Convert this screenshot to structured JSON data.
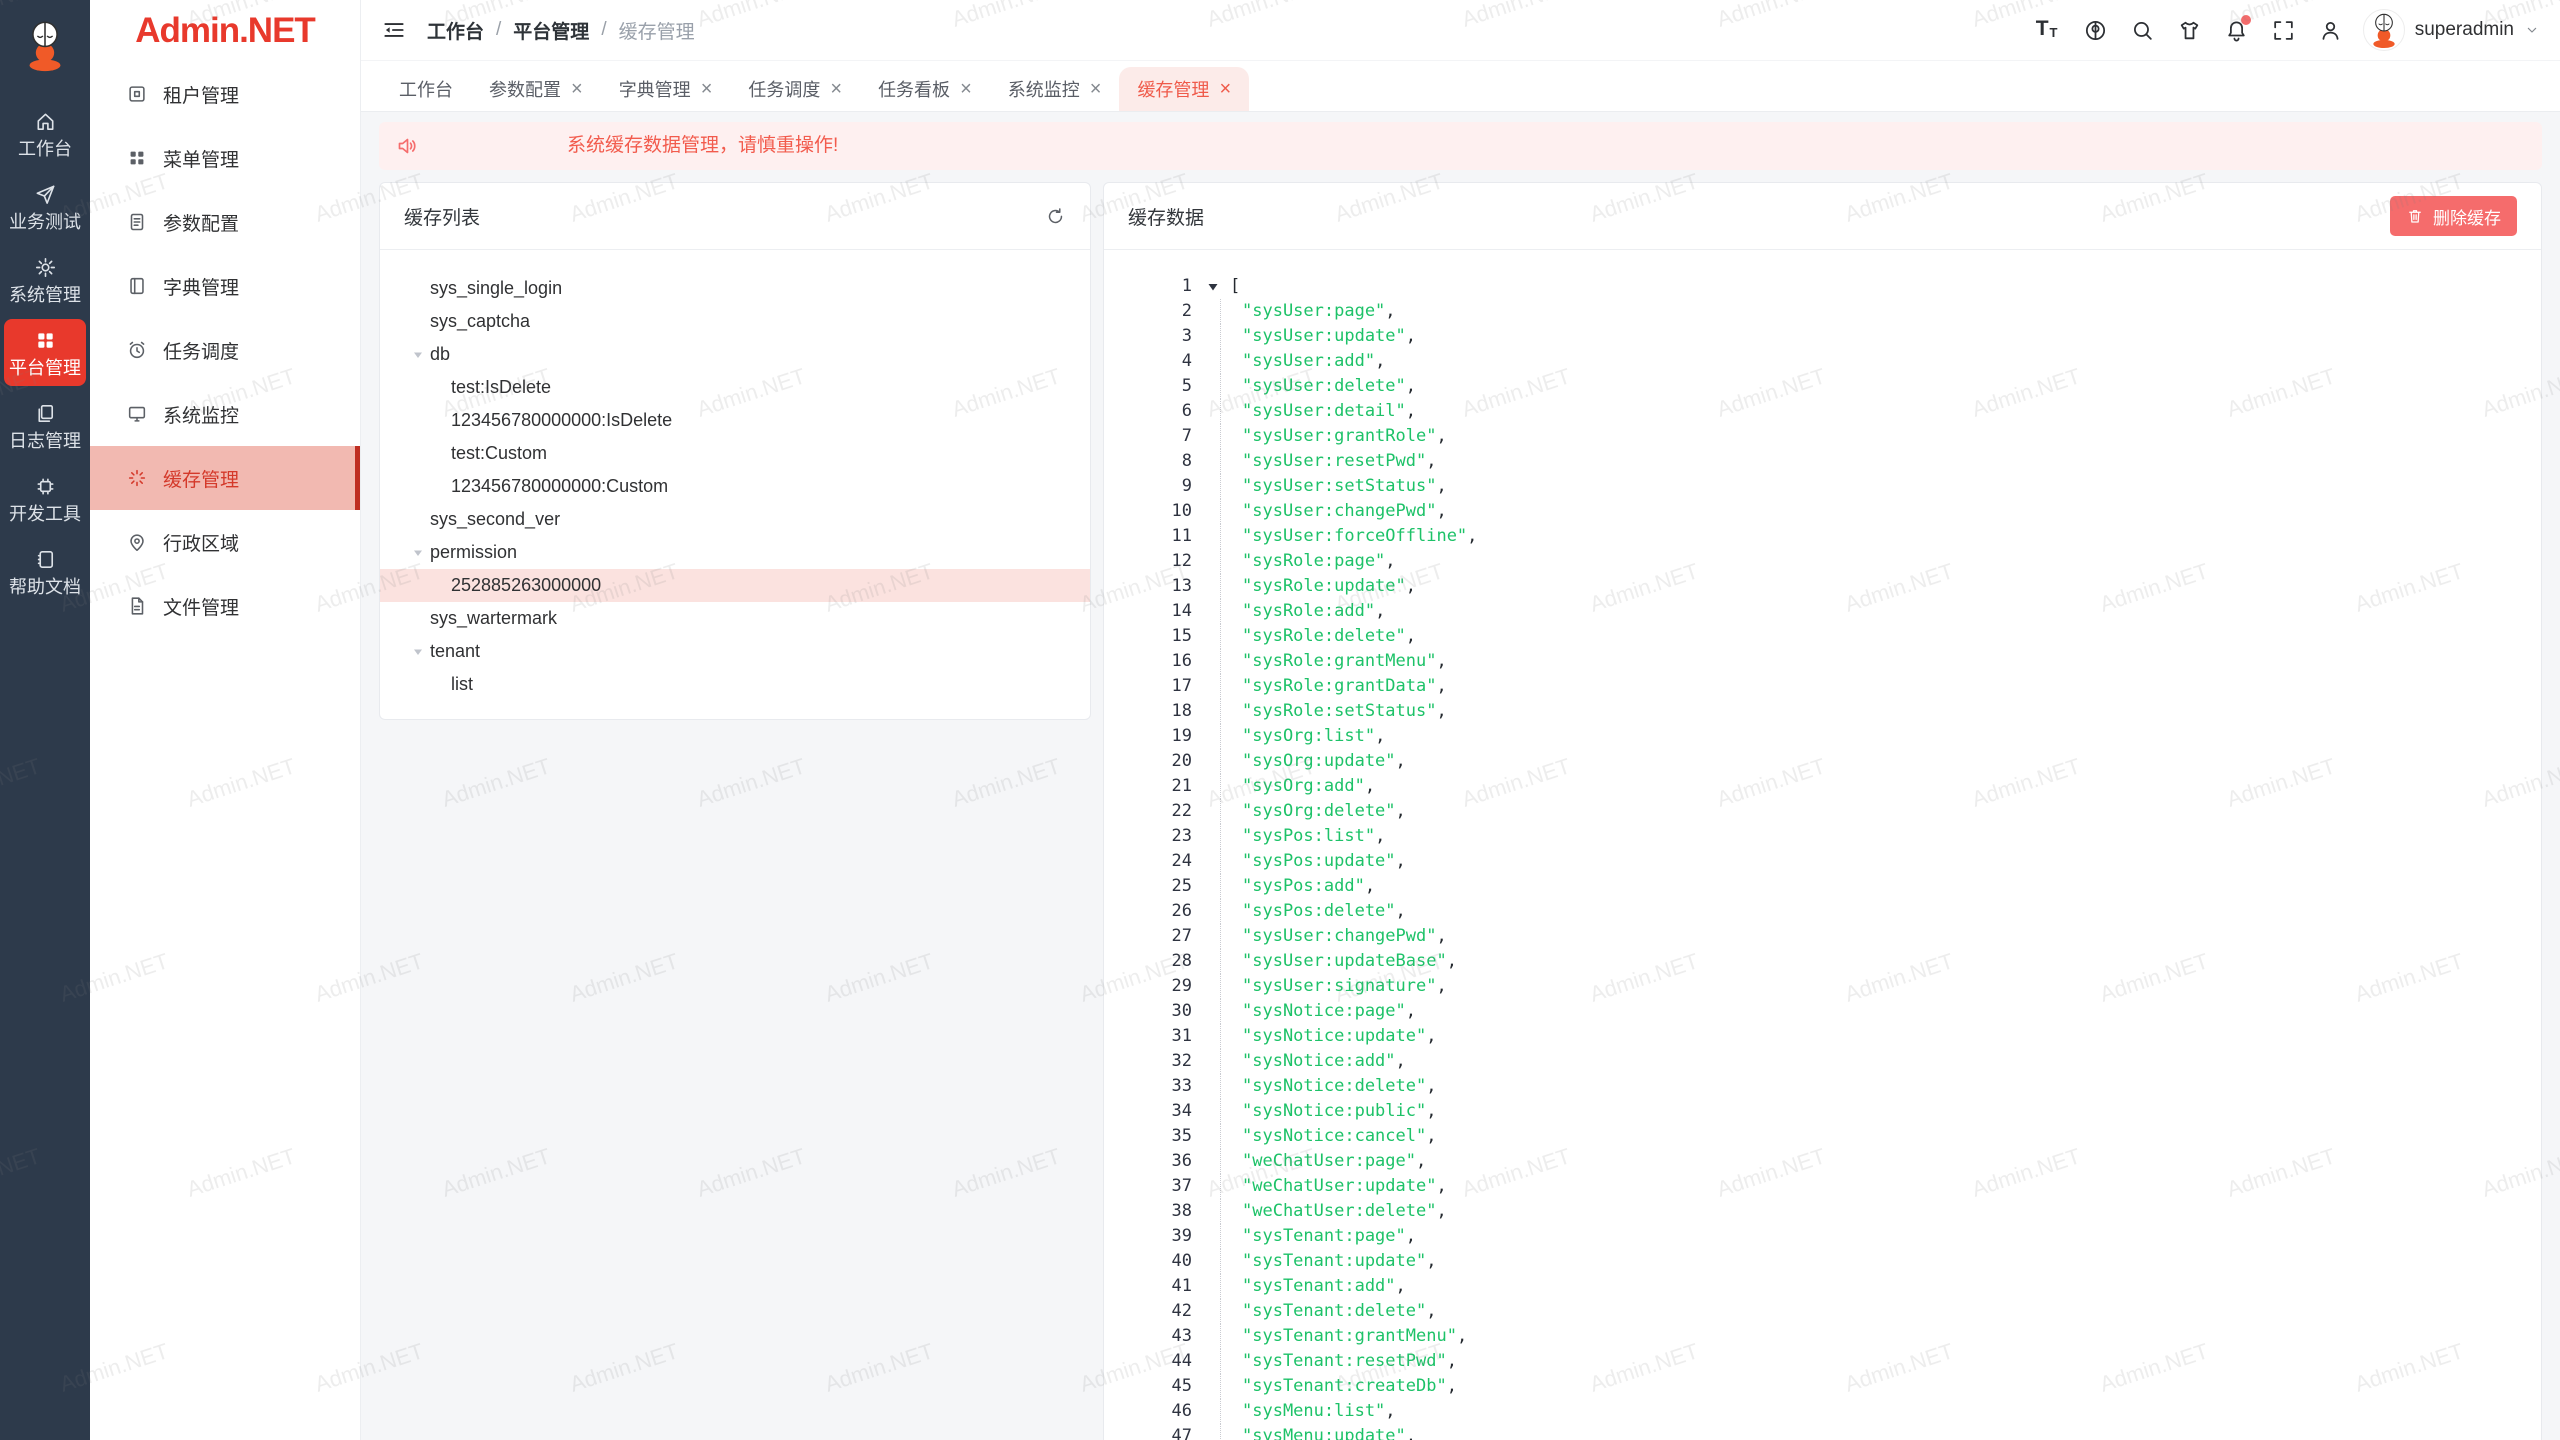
{
  "watermark": "Admin.NET",
  "colors": {
    "brand_red": "#e8392c",
    "rail_bg": "#2d3a4b",
    "sidebar_active_bg": "#f2b9b1",
    "sidebar_active_text": "#d4392a",
    "sidebar_active_strip": "#bf2e22",
    "danger_button": "#f56c6c",
    "alert_bg": "#fef0f0",
    "alert_text": "#f25b4d",
    "tab_active_bg": "#fcebe9",
    "tab_active_text": "#ef5a4a",
    "tree_selected_bg": "#fbe2df",
    "json_string": "#1dc268"
  },
  "brand": {
    "logo_text": "Admin.NET"
  },
  "rail": {
    "items": [
      {
        "icon": "home",
        "label": "工作台",
        "active": false
      },
      {
        "icon": "send",
        "label": "业务测试",
        "active": false
      },
      {
        "icon": "gear",
        "label": "系统管理",
        "active": false
      },
      {
        "icon": "grid",
        "label": "平台管理",
        "active": true
      },
      {
        "icon": "copy",
        "label": "日志管理",
        "active": false
      },
      {
        "icon": "chip",
        "label": "开发工具",
        "active": false
      },
      {
        "icon": "book",
        "label": "帮助文档",
        "active": false
      }
    ]
  },
  "sidebar": {
    "items": [
      {
        "icon": "tenant",
        "label": "租户管理",
        "active": false
      },
      {
        "icon": "menugrid",
        "label": "菜单管理",
        "active": false
      },
      {
        "icon": "doc",
        "label": "参数配置",
        "active": false
      },
      {
        "icon": "dict",
        "label": "字典管理",
        "active": false
      },
      {
        "icon": "clock",
        "label": "任务调度",
        "active": false
      },
      {
        "icon": "monitor",
        "label": "系统监控",
        "active": false
      },
      {
        "icon": "spinner",
        "label": "缓存管理",
        "active": true
      },
      {
        "icon": "pin",
        "label": "行政区域",
        "active": false
      },
      {
        "icon": "file",
        "label": "文件管理",
        "active": false
      }
    ]
  },
  "header": {
    "breadcrumb": [
      "工作台",
      "平台管理",
      "缓存管理"
    ],
    "separator": "/",
    "action_icons": [
      "font-size",
      "locale",
      "search",
      "theme",
      "bell",
      "fullscreen",
      "person"
    ],
    "bell_badge": true,
    "username": "superadmin"
  },
  "tabs": [
    {
      "label": "工作台",
      "closable": false,
      "active": false
    },
    {
      "label": "参数配置",
      "closable": true,
      "active": false
    },
    {
      "label": "字典管理",
      "closable": true,
      "active": false
    },
    {
      "label": "任务调度",
      "closable": true,
      "active": false
    },
    {
      "label": "任务看板",
      "closable": true,
      "active": false
    },
    {
      "label": "系统监控",
      "closable": true,
      "active": false
    },
    {
      "label": "缓存管理",
      "closable": true,
      "active": true
    }
  ],
  "alert": {
    "text": "系统缓存数据管理，请慎重操作!"
  },
  "cache_list": {
    "title": "缓存列表",
    "tree": [
      {
        "label": "sys_single_login",
        "level": 0,
        "expandable": false,
        "selected": false
      },
      {
        "label": "sys_captcha",
        "level": 0,
        "expandable": false,
        "selected": false
      },
      {
        "label": "db",
        "level": 0,
        "expandable": true,
        "selected": false
      },
      {
        "label": "test:IsDelete",
        "level": 1,
        "expandable": false,
        "selected": false
      },
      {
        "label": "123456780000000:IsDelete",
        "level": 1,
        "expandable": false,
        "selected": false
      },
      {
        "label": "test:Custom",
        "level": 1,
        "expandable": false,
        "selected": false
      },
      {
        "label": "123456780000000:Custom",
        "level": 1,
        "expandable": false,
        "selected": false
      },
      {
        "label": "sys_second_ver",
        "level": 0,
        "expandable": false,
        "selected": false
      },
      {
        "label": "permission",
        "level": 0,
        "expandable": true,
        "selected": false
      },
      {
        "label": "252885263000000",
        "level": 1,
        "expandable": false,
        "selected": true
      },
      {
        "label": "sys_wartermark",
        "level": 0,
        "expandable": false,
        "selected": false
      },
      {
        "label": "tenant",
        "level": 0,
        "expandable": true,
        "selected": false
      },
      {
        "label": "list",
        "level": 1,
        "expandable": false,
        "selected": false
      }
    ]
  },
  "cache_data": {
    "title": "缓存数据",
    "delete_button": "删除缓存",
    "open_bracket": "[",
    "values": [
      "sysUser:page",
      "sysUser:update",
      "sysUser:add",
      "sysUser:delete",
      "sysUser:detail",
      "sysUser:grantRole",
      "sysUser:resetPwd",
      "sysUser:setStatus",
      "sysUser:changePwd",
      "sysUser:forceOffline",
      "sysRole:page",
      "sysRole:update",
      "sysRole:add",
      "sysRole:delete",
      "sysRole:grantMenu",
      "sysRole:grantData",
      "sysRole:setStatus",
      "sysOrg:list",
      "sysOrg:update",
      "sysOrg:add",
      "sysOrg:delete",
      "sysPos:list",
      "sysPos:update",
      "sysPos:add",
      "sysPos:delete",
      "sysUser:changePwd",
      "sysUser:updateBase",
      "sysUser:signature",
      "sysNotice:page",
      "sysNotice:update",
      "sysNotice:add",
      "sysNotice:delete",
      "sysNotice:public",
      "sysNotice:cancel",
      "weChatUser:page",
      "weChatUser:update",
      "weChatUser:delete",
      "sysTenant:page",
      "sysTenant:update",
      "sysTenant:add",
      "sysTenant:delete",
      "sysTenant:grantMenu",
      "sysTenant:resetPwd",
      "sysTenant:createDb",
      "sysMenu:list",
      "sysMenu:update"
    ]
  }
}
